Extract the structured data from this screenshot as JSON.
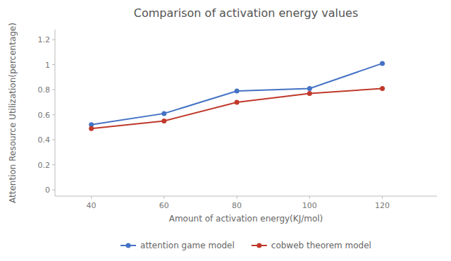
{
  "chart_data": {
    "type": "line",
    "title": "Comparison of activation energy values",
    "xlabel": "Amount of activation energy(KJ/mol)",
    "ylabel": "Attention Resource Utilization(percentage)",
    "x": [
      40,
      60,
      80,
      100,
      120
    ],
    "series": [
      {
        "name": "attention game model",
        "color": "#4472c4",
        "marker": "circle",
        "values": [
          0.52,
          0.61,
          0.79,
          0.81,
          1.01
        ]
      },
      {
        "name": "cobweb theorem model",
        "color": "#c0392b",
        "marker": "circle",
        "values": [
          0.49,
          0.55,
          0.7,
          0.77,
          0.81
        ]
      }
    ],
    "xlim": [
      30,
      135
    ],
    "xticks": [
      40,
      60,
      80,
      100,
      120
    ],
    "ylim": [
      -0.05,
      1.28
    ],
    "yticks": [
      0,
      0.2,
      0.4,
      0.6,
      0.8,
      1,
      1.2
    ],
    "grid": false,
    "legend": "bottom"
  }
}
